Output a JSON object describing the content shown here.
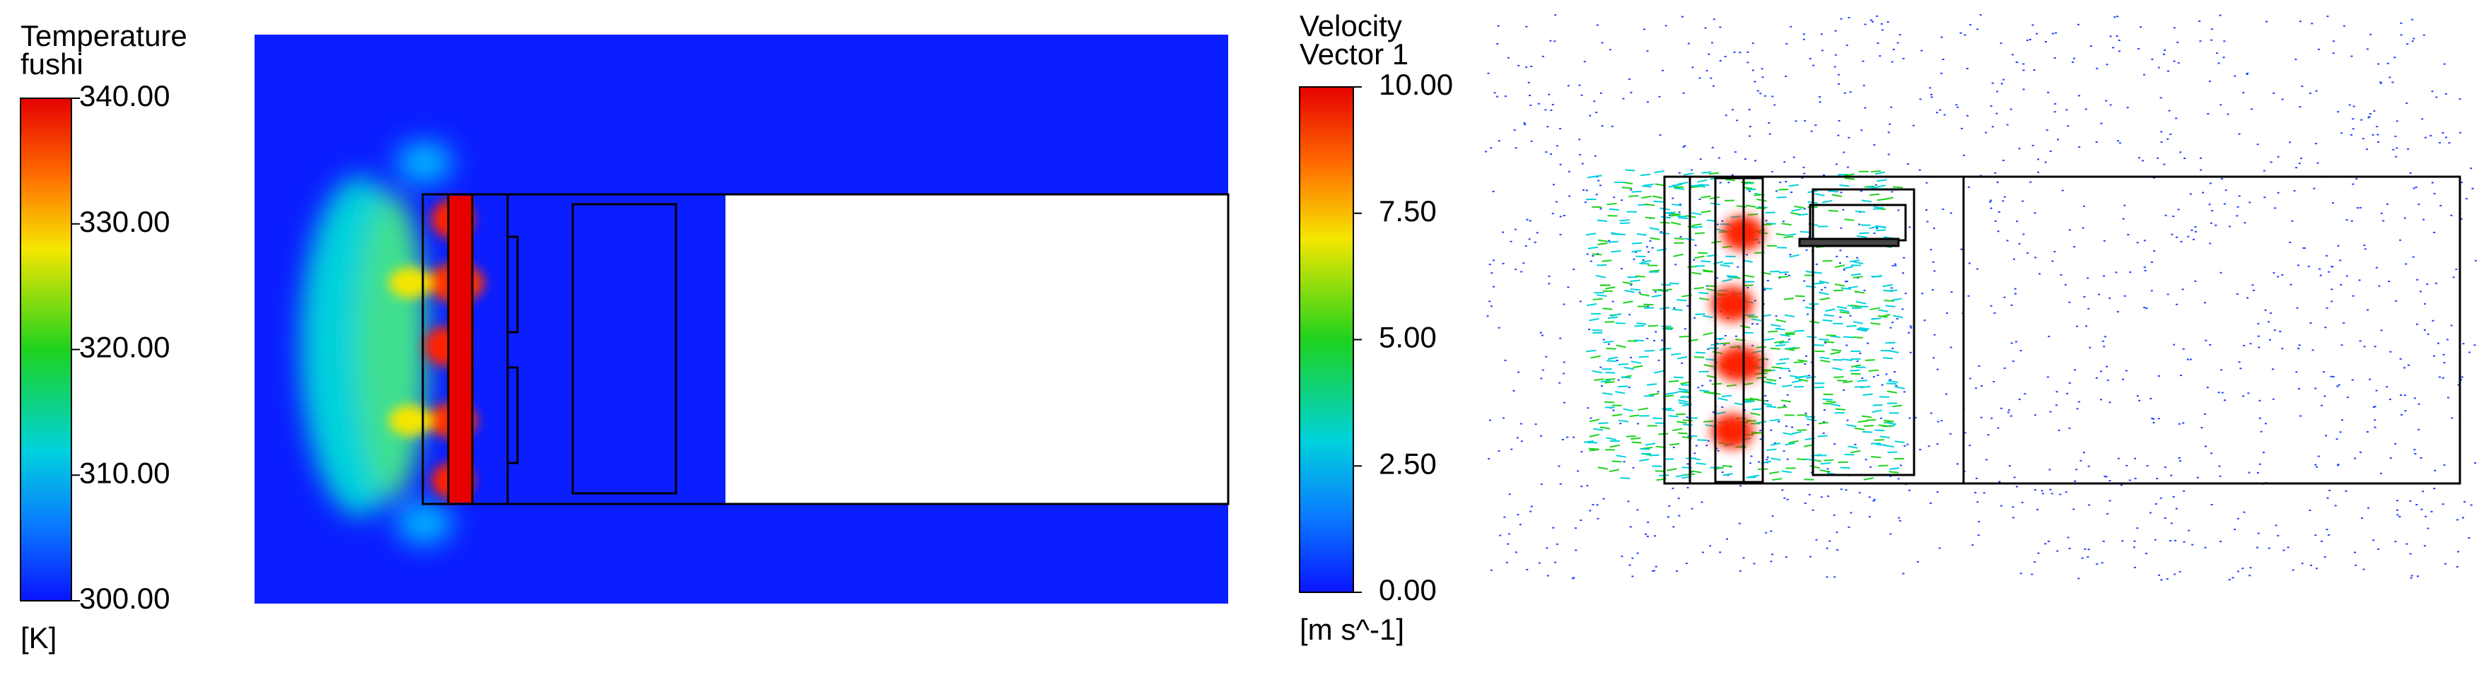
{
  "temperature_panel": {
    "legend": {
      "title": "Temperature",
      "variable": "fushi",
      "ticks": [
        "340.00",
        "330.00",
        "320.00",
        "310.00",
        "300.00"
      ],
      "unit": "[K]"
    }
  },
  "velocity_panel": {
    "legend": {
      "title": "Velocity",
      "variable": "Vector 1",
      "ticks": [
        "10.00",
        "7.50",
        "5.00",
        "2.50",
        "0.00"
      ],
      "unit": "[m s^-1]"
    }
  }
}
